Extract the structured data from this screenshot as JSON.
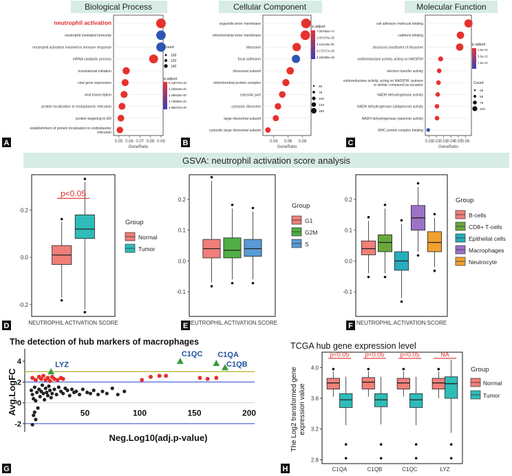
{
  "panel_letters": [
    "A",
    "B",
    "C",
    "D",
    "E",
    "F",
    "G",
    "H"
  ],
  "colors": {
    "banner": "#d6ece4",
    "normal": "#f07f7a",
    "tumor": "#2fbcb8",
    "g1": "#f07f7a",
    "g2m": "#4fae45",
    "s": "#5a9bd5",
    "bcells": "#f07f7a",
    "cd8": "#6aa83c",
    "epithelial": "#26aebc",
    "macrophages": "#9b72c6",
    "neutrocyte": "#f0a12e",
    "dot_red": "#e5322d",
    "dot_blue": "#2e56b5",
    "gsva_sig": "#e12b2b",
    "olive_line": "#b0ae22",
    "blue_line": "#4f6bd6",
    "triangle": "#3c9a3c",
    "annot_blue": "#1f4f9e"
  },
  "gsva_banner": "GSVA: neutrophil activation score analysis",
  "chart_data": [
    {
      "panel": "A",
      "type": "scatter",
      "title": "Biological Process",
      "xlabel": "GeneRatio",
      "xticks": [
        "0.05",
        "0.06",
        "0.07",
        "0.08",
        "0.09"
      ],
      "xlim": [
        0.045,
        0.092
      ],
      "categories": [
        "neutrophil activation",
        "neutrophil mediated immunity",
        "neutrophil activation involved in immune response",
        "mRNA catabolic process",
        "translational initiation",
        "viral gene expression",
        "viral transcription",
        "protein localization to endoplasmic reticulum",
        "protein targeting to ER",
        "establishment of protein localization to endoplasmic reticulum"
      ],
      "highlight": "neutrophil activation",
      "x": [
        0.09,
        0.09,
        0.09,
        0.083,
        0.057,
        0.056,
        0.055,
        0.053,
        0.052,
        0.051
      ],
      "size": [
        140,
        137,
        135,
        125,
        90,
        88,
        86,
        84,
        80,
        78
      ],
      "color": [
        "red",
        "blue",
        "blue",
        "red",
        "red",
        "red",
        "red",
        "red",
        "red",
        "red"
      ],
      "legend_count_title": "Count",
      "legend_count": [
        "100",
        "120",
        "140"
      ],
      "legend_color_title": "p.adjust",
      "legend_color": [
        "5.449710e-48",
        "1.246618e-40",
        "2.489235e-40",
        "3.736850e-40",
        "4.988470e-40"
      ]
    },
    {
      "panel": "B",
      "type": "scatter",
      "title": "Cellular Component",
      "xlabel": "GeneRatio",
      "xticks": [
        "0.04",
        "0.06",
        "0.08"
      ],
      "xlim": [
        0.025,
        0.092
      ],
      "categories": [
        "organelle inner membrane",
        "mitochondrial inner membrane",
        "ribosome",
        "focal adhesion",
        "ribosomal subunit",
        "mitochondrial protein complex",
        "cytosolic part",
        "cytosolic ribosome",
        "large ribosomal subunit",
        "cytosolic large ribosomal subunit"
      ],
      "x": [
        0.085,
        0.084,
        0.072,
        0.071,
        0.063,
        0.057,
        0.052,
        0.046,
        0.043,
        0.032
      ],
      "size": [
        140,
        138,
        115,
        112,
        95,
        90,
        80,
        75,
        70,
        55
      ],
      "color": [
        "red",
        "red",
        "red",
        "blue",
        "red",
        "red",
        "red",
        "red",
        "red",
        "red"
      ],
      "legend_color_title": "p.adjust",
      "legend_color": [
        "7.067654e-74",
        "2.057670e-35",
        "4.115145e-35",
        "6.172717e-35",
        "8.230288e-35"
      ],
      "legend_count": [
        "50",
        "75",
        "100",
        "125",
        "150"
      ]
    },
    {
      "panel": "C",
      "type": "scatter",
      "title": "Molecular Function",
      "xlabel": "GeneRatio",
      "xticks": [
        "0.01",
        "0.02",
        "0.03",
        "0.04",
        "0.05",
        "0.06"
      ],
      "xlim": [
        0.005,
        0.068
      ],
      "categories": [
        "cell adhesion molecule binding",
        "cadherin binding",
        "structural constituent of ribosome",
        "oxidoreductase activity, acting on NAD(P)H",
        "electron transfer activity",
        "oxidoreductase activity, acting on NAD(P)H, quinone or similar compound as acceptor",
        "NADH dehydrogenase activity",
        "NADH dehydrogenase (ubiquinone) activity",
        "NADH dehydrogenase (quinone) activity",
        "MHC protein complex binding"
      ],
      "x": [
        0.064,
        0.053,
        0.052,
        0.026,
        0.024,
        0.023,
        0.022,
        0.021,
        0.021,
        0.009
      ],
      "size": [
        110,
        95,
        93,
        45,
        40,
        38,
        36,
        35,
        35,
        20
      ],
      "color": [
        "red",
        "red",
        "red",
        "red",
        "red",
        "red",
        "red",
        "red",
        "red",
        "blue"
      ],
      "legend_color_title": "p.adjust",
      "legend_color": [
        "2.5e-13",
        "5.0e-13",
        "7.5e-13"
      ],
      "legend_count_title": "Count",
      "legend_count": [
        "25",
        "50",
        "75",
        "100"
      ]
    },
    {
      "panel": "D",
      "type": "box",
      "xlabel": "NEUTROPHIL ACTIVATION SCORE",
      "yticks": [
        "-0.2",
        "0.0",
        "0.2"
      ],
      "ylim": [
        -0.25,
        0.35
      ],
      "legend_title": "Group",
      "groups": [
        {
          "name": "Normal",
          "q1": -0.03,
          "median": 0.01,
          "q3": 0.05,
          "whisker_low": -0.17,
          "whisker_high": 0.15
        },
        {
          "name": "Tumor",
          "q1": 0.08,
          "median": 0.12,
          "q3": 0.18,
          "whisker_low": -0.22,
          "whisker_high": 0.32
        }
      ],
      "annotation": "p<0.05"
    },
    {
      "panel": "E",
      "type": "box",
      "xlabel": "NEUTROPHIL.ACTIVATION.SCORE",
      "yticks": [
        "-0.1",
        "0.0",
        "0.1",
        "0.2"
      ],
      "ylim": [
        -0.18,
        0.28
      ],
      "legend_title": "Group",
      "groups": [
        {
          "name": "G1",
          "q1": 0.01,
          "median": 0.04,
          "q3": 0.07,
          "whisker_low": -0.07,
          "whisker_high": 0.26
        },
        {
          "name": "G2M",
          "q1": 0.01,
          "median": 0.035,
          "q3": 0.075,
          "whisker_low": -0.06,
          "whisker_high": 0.17
        },
        {
          "name": "S",
          "q1": 0.015,
          "median": 0.04,
          "q3": 0.07,
          "whisker_low": -0.06,
          "whisker_high": 0.16
        }
      ]
    },
    {
      "panel": "F",
      "type": "box",
      "xlabel": "NEUTROPHIL.ACTIVATION.SCORE",
      "yticks": [
        "-0.1",
        "0.0",
        "0.1",
        "0.2"
      ],
      "ylim": [
        -0.18,
        0.28
      ],
      "legend_title": "Group",
      "groups": [
        {
          "name": "B-cells",
          "q1": 0.02,
          "median": 0.04,
          "q3": 0.065,
          "whisker_low": -0.04,
          "whisker_high": 0.13
        },
        {
          "name": "CD8+ T-cells",
          "q1": 0.03,
          "median": 0.06,
          "q3": 0.085,
          "whisker_low": -0.04,
          "whisker_high": 0.17
        },
        {
          "name": "Epithelial cells",
          "q1": -0.03,
          "median": 0.0,
          "q3": 0.03,
          "whisker_low": -0.12,
          "whisker_high": 0.12
        },
        {
          "name": "Macrophages",
          "q1": 0.1,
          "median": 0.14,
          "q3": 0.18,
          "whisker_low": 0.03,
          "whisker_high": 0.24
        },
        {
          "name": "Neutrocyte",
          "q1": 0.03,
          "median": 0.06,
          "q3": 0.095,
          "whisker_low": -0.02,
          "whisker_high": 0.14
        }
      ]
    },
    {
      "panel": "G",
      "type": "scatter",
      "title": "The detection of hub markers of macrophages",
      "xlabel": "Neg.Log10(adj.p-value)",
      "ylabel": "Avg.LogFC",
      "xticks": [
        "50",
        "100",
        "150",
        "200"
      ],
      "yticks": [
        "-2",
        "0",
        "2",
        "4"
      ],
      "xlim": [
        -5,
        205
      ],
      "ylim": [
        -2.8,
        5.2
      ],
      "hlines": [
        3.0,
        2.0,
        -2.0
      ],
      "labels": [
        {
          "text": "LYZ",
          "x": 19,
          "y": 3.0
        },
        {
          "text": "C1QC",
          "x": 137,
          "y": 4.0
        },
        {
          "text": "C1QA",
          "x": 170,
          "y": 3.8
        },
        {
          "text": "C1QB",
          "x": 178,
          "y": 3.4
        }
      ],
      "red_points": [
        [
          2,
          2.4
        ],
        [
          5,
          2.2
        ],
        [
          8,
          2.5
        ],
        [
          10,
          2.3
        ],
        [
          12,
          2.6
        ],
        [
          14,
          2.2
        ],
        [
          16,
          2.4
        ],
        [
          18,
          2.1
        ],
        [
          20,
          2.5
        ],
        [
          22,
          2.3
        ],
        [
          25,
          2.2
        ],
        [
          28,
          2.4
        ],
        [
          30,
          2.3
        ],
        [
          102,
          2.2
        ],
        [
          110,
          2.5
        ],
        [
          118,
          2.6
        ],
        [
          124,
          2.6
        ],
        [
          155,
          2.4
        ],
        [
          162,
          2.3
        ],
        [
          170,
          2.4
        ]
      ],
      "black_points": [
        [
          1,
          1.2
        ],
        [
          2,
          0.8
        ],
        [
          3,
          0.4
        ],
        [
          4,
          1.5
        ],
        [
          5,
          0.2
        ],
        [
          6,
          1.0
        ],
        [
          7,
          -0.5
        ],
        [
          8,
          1.3
        ],
        [
          9,
          0.6
        ],
        [
          10,
          1.1
        ],
        [
          11,
          1.7
        ],
        [
          12,
          0.9
        ],
        [
          13,
          0.3
        ],
        [
          14,
          1.4
        ],
        [
          15,
          1.0
        ],
        [
          16,
          0.7
        ],
        [
          17,
          1.6
        ],
        [
          18,
          1.2
        ],
        [
          19,
          0.5
        ],
        [
          20,
          0.9
        ],
        [
          22,
          1.3
        ],
        [
          24,
          0.8
        ],
        [
          26,
          1.5
        ],
        [
          28,
          1.1
        ],
        [
          30,
          0.9
        ],
        [
          32,
          1.4
        ],
        [
          34,
          1.2
        ],
        [
          36,
          0.7
        ],
        [
          38,
          1.3
        ],
        [
          40,
          1.0
        ],
        [
          42,
          1.1
        ],
        [
          45,
          0.8
        ],
        [
          48,
          1.3
        ],
        [
          52,
          1.0
        ],
        [
          55,
          0.9
        ],
        [
          58,
          1.2
        ],
        [
          62,
          0.8
        ],
        [
          66,
          1.1
        ],
        [
          70,
          0.9
        ],
        [
          75,
          1.4
        ],
        [
          80,
          0.8
        ],
        [
          86,
          1.1
        ],
        [
          3,
          -1.2
        ],
        [
          5,
          -1.6
        ],
        [
          2,
          -2.1
        ],
        [
          4,
          -0.9
        ]
      ],
      "green_triangles": [
        [
          19,
          3.0
        ],
        [
          137,
          4.0
        ],
        [
          170,
          3.8
        ],
        [
          178,
          3.4
        ]
      ]
    },
    {
      "panel": "H",
      "type": "box",
      "title": "TCGA hub gene expression level",
      "ylabel": "The Log2 transformed gene expression value",
      "categories": [
        "C1QA",
        "C1QB",
        "C1QC",
        "LYZ"
      ],
      "yticks": [
        "2.8",
        "3.2",
        "3.6",
        "4.0"
      ],
      "ylim": [
        2.75,
        4.2
      ],
      "legend_title": "Group",
      "legend": [
        "Normal",
        "Tumor"
      ],
      "annotations": [
        "p<0.05",
        "p<0.05",
        "p<0.05",
        "NA"
      ],
      "normal": [
        {
          "q1": 3.72,
          "median": 3.8,
          "q3": 3.86,
          "whisker_low": 3.62,
          "whisker_high": 3.95
        },
        {
          "q1": 3.72,
          "median": 3.81,
          "q3": 3.87,
          "whisker_low": 3.62,
          "whisker_high": 3.95
        },
        {
          "q1": 3.72,
          "median": 3.8,
          "q3": 3.86,
          "whisker_low": 3.62,
          "whisker_high": 3.95
        },
        {
          "q1": 3.72,
          "median": 3.8,
          "q3": 3.86,
          "whisker_low": 3.6,
          "whisker_high": 3.95
        }
      ],
      "tumor": [
        {
          "q1": 3.48,
          "median": 3.58,
          "q3": 3.66,
          "whisker_low": 3.25,
          "whisker_high": 3.88
        },
        {
          "q1": 3.49,
          "median": 3.58,
          "q3": 3.66,
          "whisker_low": 3.26,
          "whisker_high": 3.88
        },
        {
          "q1": 3.48,
          "median": 3.58,
          "q3": 3.66,
          "whisker_low": 3.25,
          "whisker_high": 3.88
        },
        {
          "q1": 3.6,
          "median": 3.79,
          "q3": 3.88,
          "whisker_low": 3.15,
          "whisker_high": 4.1
        }
      ]
    }
  ]
}
